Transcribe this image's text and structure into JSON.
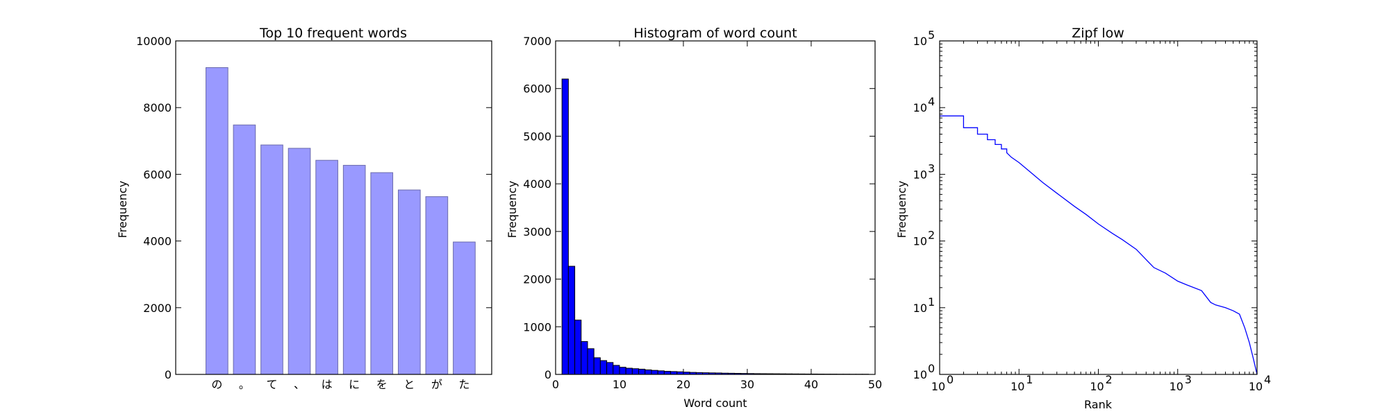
{
  "chart_data": [
    {
      "type": "bar",
      "title": "Top 10 frequent words",
      "xlabel": "",
      "ylabel": "Frequency",
      "categories": [
        "の",
        "。",
        "て",
        "、",
        "は",
        "に",
        "を",
        "と",
        "が",
        "た"
      ],
      "values": [
        9200,
        7480,
        6880,
        6780,
        6420,
        6270,
        6050,
        5530,
        5330,
        3970
      ],
      "ylim": [
        0,
        10000
      ],
      "yticks": [
        "0",
        "2000",
        "4000",
        "6000",
        "8000",
        "10000"
      ],
      "bar_color": "#9999ff",
      "bar_edge": "#6a6aaa"
    },
    {
      "type": "bar",
      "title": "Histogram of word count",
      "xlabel": "Word count",
      "ylabel": "Frequency",
      "bin_width": 1,
      "bin_start": 1,
      "values": [
        6200,
        2270,
        1140,
        690,
        540,
        350,
        290,
        250,
        190,
        150,
        130,
        120,
        110,
        95,
        85,
        75,
        65,
        60,
        55,
        48,
        42,
        38,
        35,
        32,
        30,
        26,
        24,
        22,
        20,
        18,
        16,
        15,
        14,
        13,
        12,
        11,
        10,
        9,
        8,
        8,
        7,
        6,
        6,
        5,
        5,
        4,
        4,
        4
      ],
      "xlim": [
        0,
        50
      ],
      "ylim": [
        0,
        7000
      ],
      "xticks": [
        "0",
        "10",
        "20",
        "30",
        "40",
        "50"
      ],
      "yticks": [
        "0",
        "1000",
        "2000",
        "3000",
        "4000",
        "5000",
        "6000",
        "7000"
      ],
      "bar_color": "#0000ff",
      "bar_edge": "#000000"
    },
    {
      "type": "line",
      "title": "Zipf low",
      "xlabel": "Rank",
      "ylabel": "Frequency",
      "scale": "log-log",
      "xlim": [
        1,
        10000
      ],
      "ylim": [
        1,
        100000
      ],
      "xticks": [
        "10",
        "10",
        "10",
        "10",
        "10"
      ],
      "xtick_exponents": [
        "0",
        "1",
        "2",
        "3",
        "4"
      ],
      "yticks": [
        "10",
        "10",
        "10",
        "10",
        "10",
        "10"
      ],
      "ytick_exponents": [
        "0",
        "1",
        "2",
        "3",
        "4",
        "5"
      ],
      "x": [
        1,
        2,
        2,
        3,
        3,
        4,
        4,
        5,
        5,
        6,
        6,
        7,
        7,
        8,
        10,
        15,
        20,
        30,
        50,
        70,
        100,
        150,
        200,
        300,
        500,
        700,
        1000,
        1300,
        2000,
        2600,
        3000,
        4000,
        5000,
        6000,
        7000,
        8000,
        9000,
        10000
      ],
      "y": [
        7500,
        7500,
        5000,
        5000,
        4000,
        4000,
        3300,
        3300,
        2800,
        2800,
        2400,
        2400,
        2100,
        1800,
        1500,
        1000,
        750,
        520,
        330,
        250,
        180,
        130,
        105,
        75,
        40,
        33,
        25,
        22,
        18,
        12,
        11,
        10,
        9,
        8,
        5,
        3,
        1.7,
        1
      ],
      "line_color": "#0000ff"
    }
  ]
}
